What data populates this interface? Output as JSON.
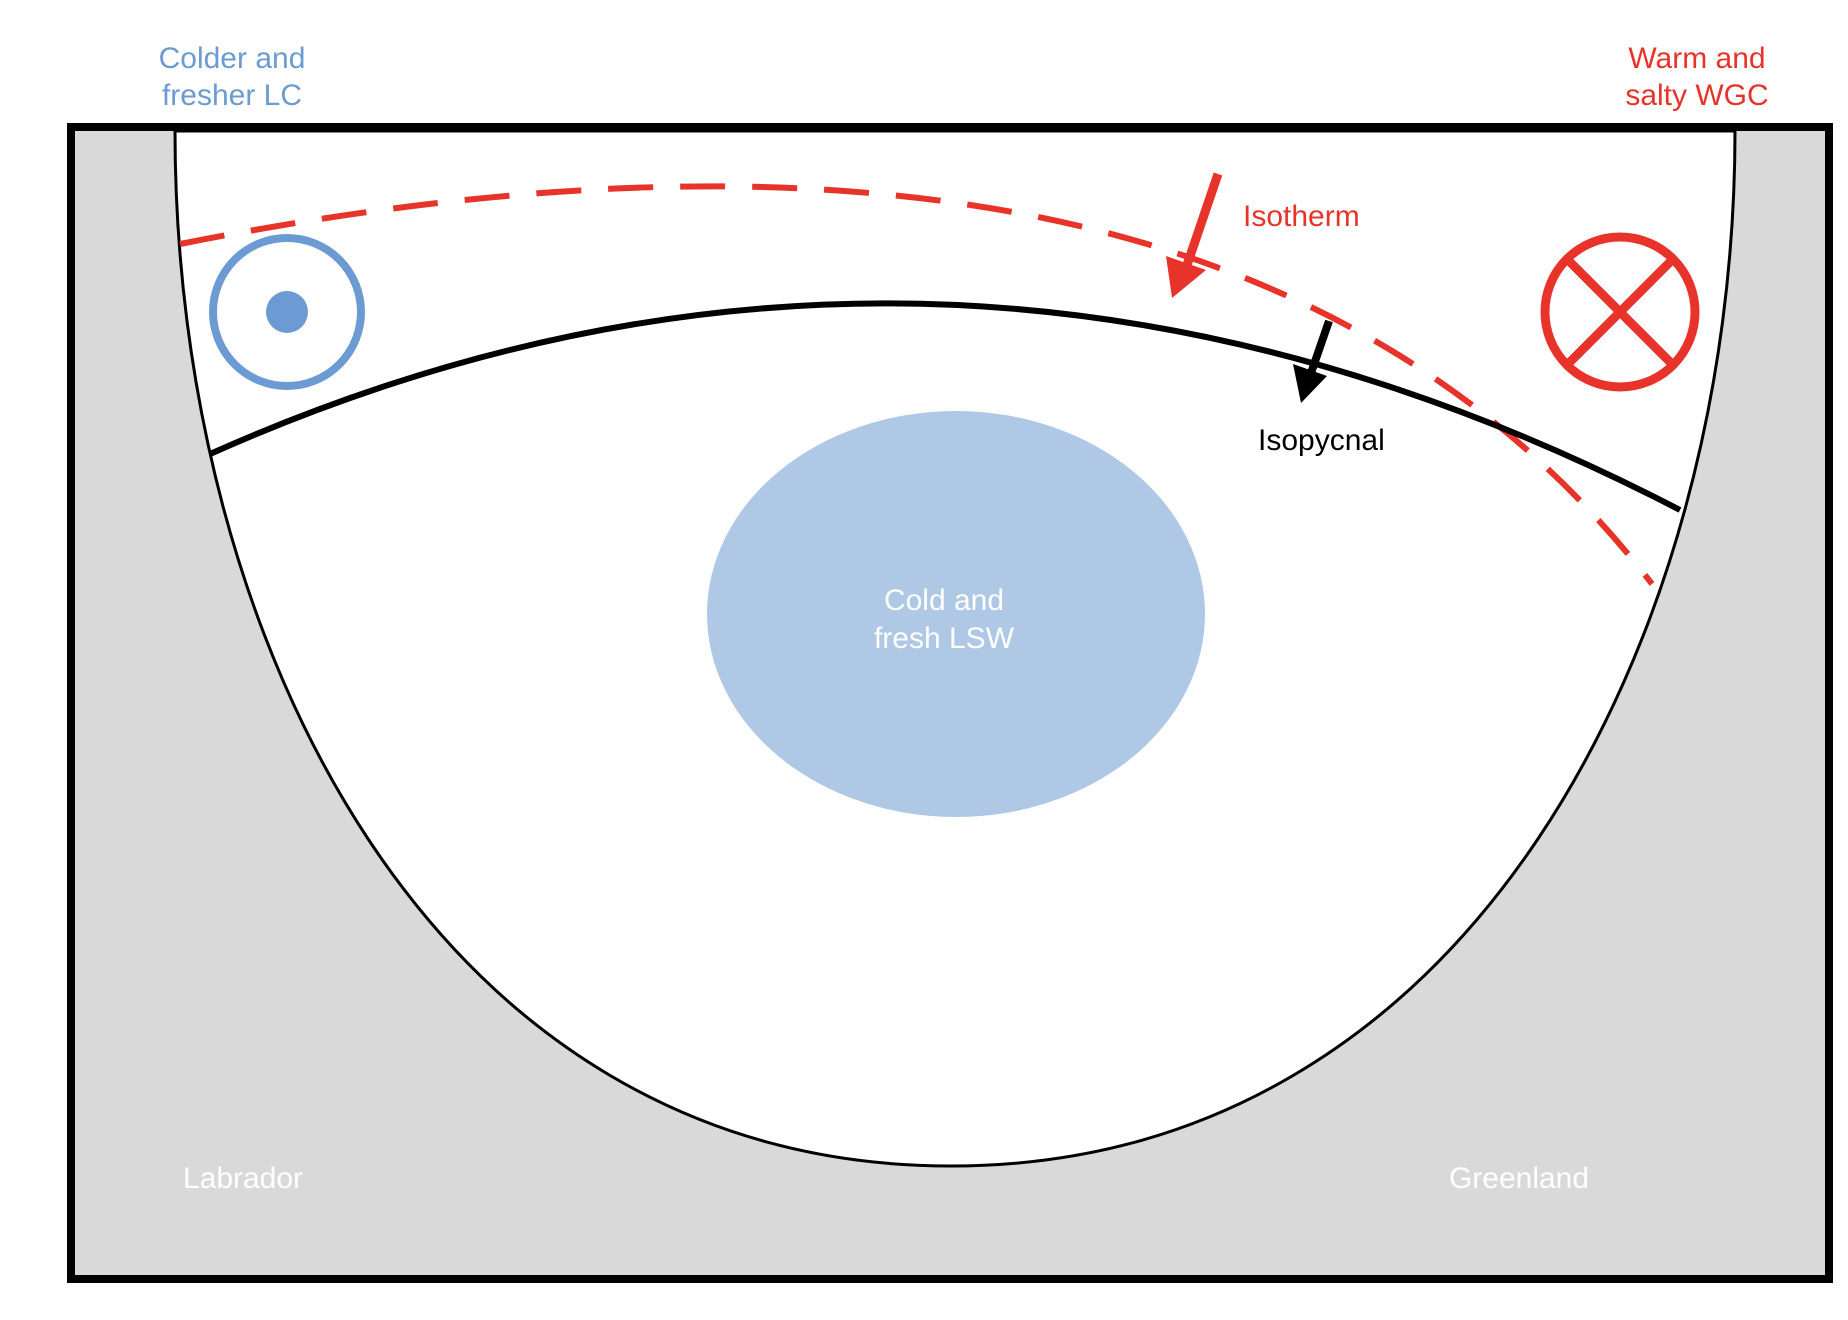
{
  "labels": {
    "lc_line1": "Colder and",
    "lc_line2": "fresher LC",
    "wgc_line1": "Warm and",
    "wgc_line2": "salty WGC",
    "isotherm": "Isotherm",
    "isopycnal": "Isopycnal",
    "lsw_line1": "Cold and",
    "lsw_line2": "fresh LSW",
    "left_land": "Labrador",
    "right_land": "Greenland"
  },
  "colors": {
    "land": "#d9d9d9",
    "basin": "#ffffff",
    "outline": "#000000",
    "lc_blue": "#6b9bd2",
    "lsw_blue": "#aec8e5",
    "warm_red": "#e8332a",
    "land_text": "#ffffff"
  },
  "symbols": {
    "lc_current": "out-of-page-circle-dot-icon",
    "wgc_current": "into-page-circle-cross-icon"
  }
}
